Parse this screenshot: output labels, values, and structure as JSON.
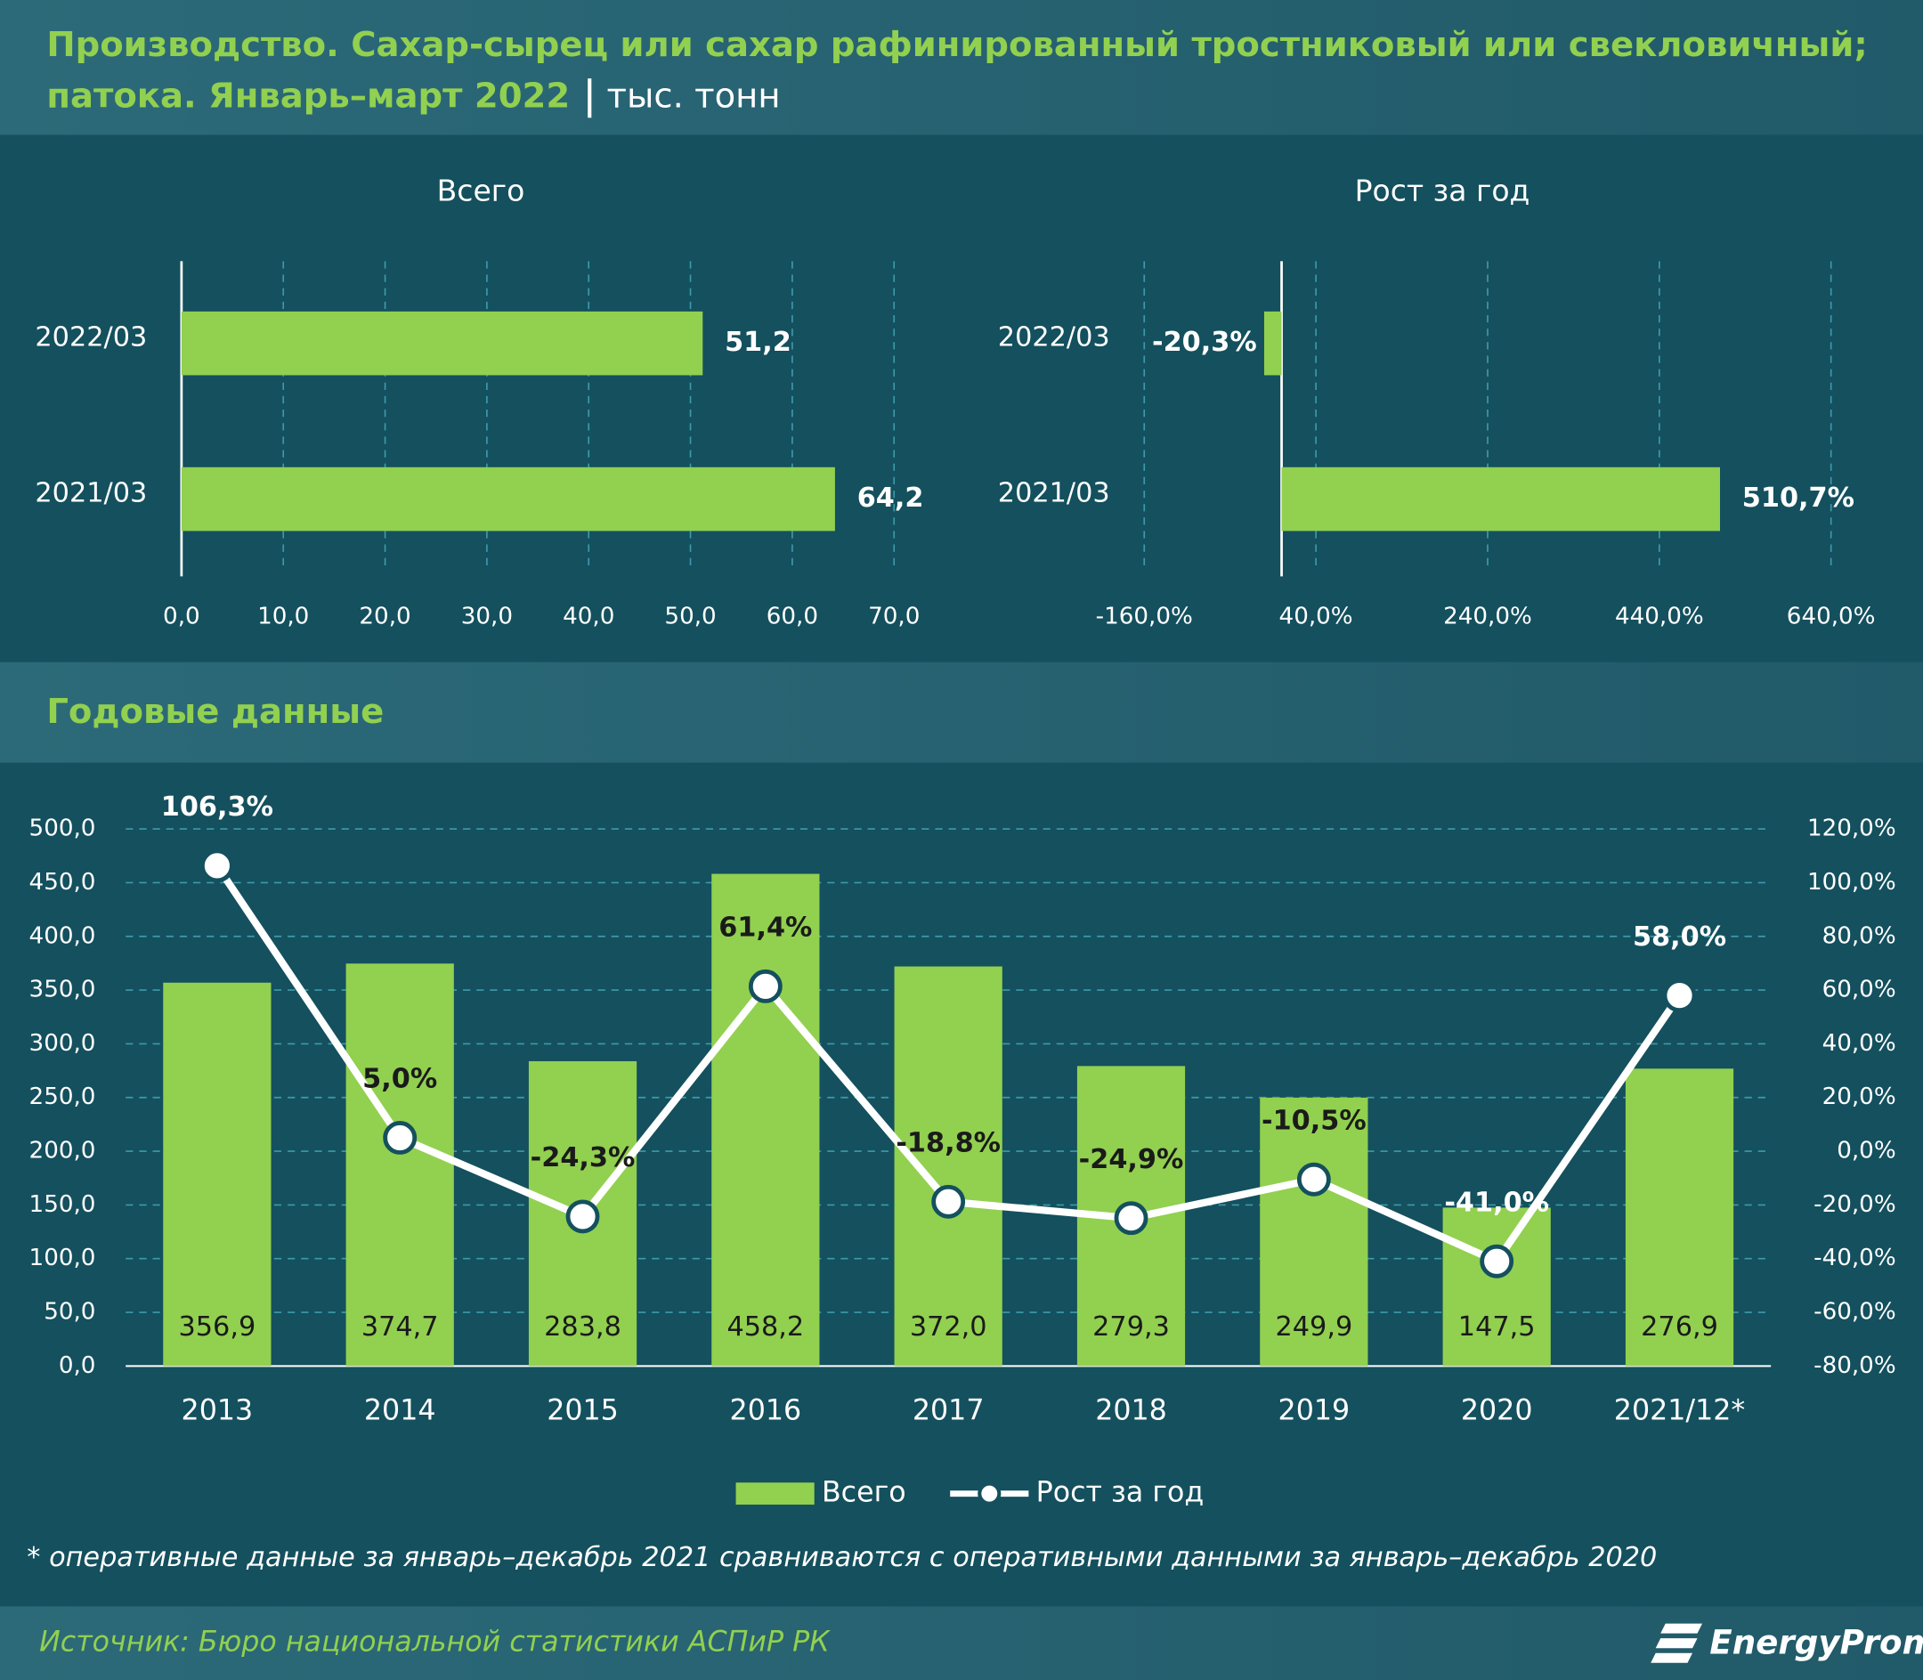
{
  "header": {
    "title_lines": [
      "Производство. Сахар-сырец или сахар рафинированный тростниковый или свекловичный;",
      "патока. Январь–март 2022"
    ],
    "unit": "тыс. тонн"
  },
  "chart_data": [
    {
      "type": "hbar",
      "title": "Всего",
      "categories": [
        "2022/03",
        "2021/03"
      ],
      "values": [
        51.2,
        64.2
      ],
      "value_labels": [
        "51,2",
        "64,2"
      ],
      "color": "#92d050",
      "xlim": [
        0,
        70
      ],
      "xticks": [
        {
          "value": 0,
          "label": "0,0"
        },
        {
          "value": 10,
          "label": "10,0"
        },
        {
          "value": 20,
          "label": "20,0"
        },
        {
          "value": 30,
          "label": "30,0"
        },
        {
          "value": 40,
          "label": "40,0"
        },
        {
          "value": 50,
          "label": "50,0"
        },
        {
          "value": 60,
          "label": "60,0"
        },
        {
          "value": 70,
          "label": "70,0"
        }
      ],
      "grid": true
    },
    {
      "type": "hbar",
      "title": "Рост за год",
      "categories": [
        "2022/03",
        "2021/03"
      ],
      "values": [
        -20.3,
        510.7
      ],
      "value_labels": [
        "-20,3%",
        "510,7%"
      ],
      "color": "#92d050",
      "xlim": [
        -160,
        640
      ],
      "xticks": [
        {
          "value": -160,
          "label": "-160,0%"
        },
        {
          "value": 40,
          "label": "40,0%"
        },
        {
          "value": 240,
          "label": "240,0%"
        },
        {
          "value": 440,
          "label": "440,0%"
        },
        {
          "value": 640,
          "label": "640,0%"
        }
      ],
      "grid": true
    },
    {
      "type": "combo",
      "title": "Годовые данные",
      "categories": [
        "2013",
        "2014",
        "2015",
        "2016",
        "2017",
        "2018",
        "2019",
        "2020",
        "2021/12*"
      ],
      "series": [
        {
          "name": "Всего",
          "type": "bar",
          "color": "#92d050",
          "values": [
            356.9,
            374.7,
            283.8,
            458.2,
            372.0,
            279.3,
            249.9,
            147.5,
            276.9
          ],
          "value_labels": [
            "356,9",
            "374,7",
            "283,8",
            "458,2",
            "372,0",
            "279,3",
            "249,9",
            "147,5",
            "276,9"
          ]
        },
        {
          "name": "Рост за год",
          "type": "line",
          "axis": "y2",
          "color": "#ffffff",
          "values": [
            106.3,
            5.0,
            -24.3,
            61.4,
            -18.8,
            -24.9,
            -10.5,
            -41.0,
            58.0
          ],
          "value_labels": [
            "106,3%",
            "5,0%",
            "-24,3%",
            "61,4%",
            "-18,8%",
            "-24,9%",
            "-10,5%",
            "-41,0%",
            "58,0%"
          ]
        }
      ],
      "ylim": [
        0,
        500
      ],
      "yticks": [
        {
          "value": 0,
          "label": "0,0"
        },
        {
          "value": 50,
          "label": "50,0"
        },
        {
          "value": 100,
          "label": "100,0"
        },
        {
          "value": 150,
          "label": "150,0"
        },
        {
          "value": 200,
          "label": "200,0"
        },
        {
          "value": 250,
          "label": "250,0"
        },
        {
          "value": 300,
          "label": "300,0"
        },
        {
          "value": 350,
          "label": "350,0"
        },
        {
          "value": 400,
          "label": "400,0"
        },
        {
          "value": 450,
          "label": "450,0"
        },
        {
          "value": 500,
          "label": "500,0"
        }
      ],
      "y2lim": [
        -80,
        120
      ],
      "y2ticks": [
        {
          "value": -80,
          "label": "-80,0%"
        },
        {
          "value": -60,
          "label": "-60,0%"
        },
        {
          "value": -40,
          "label": "-40,0%"
        },
        {
          "value": -20,
          "label": "-20,0%"
        },
        {
          "value": 0,
          "label": "0,0%"
        },
        {
          "value": 20,
          "label": "20,0%"
        },
        {
          "value": 40,
          "label": "40,0%"
        },
        {
          "value": 60,
          "label": "60,0%"
        },
        {
          "value": 80,
          "label": "80,0%"
        },
        {
          "value": 100,
          "label": "100,0%"
        },
        {
          "value": 120,
          "label": "120,0%"
        }
      ],
      "grid": true,
      "legend": "bottom"
    }
  ],
  "footnote": "* оперативные данные за январь–декабрь 2021 сравниваются с оперативными данными за январь–декабрь 2020",
  "source": "Источник: Бюро национальной статистики АСПиР РК",
  "logo": "EnergyProm"
}
